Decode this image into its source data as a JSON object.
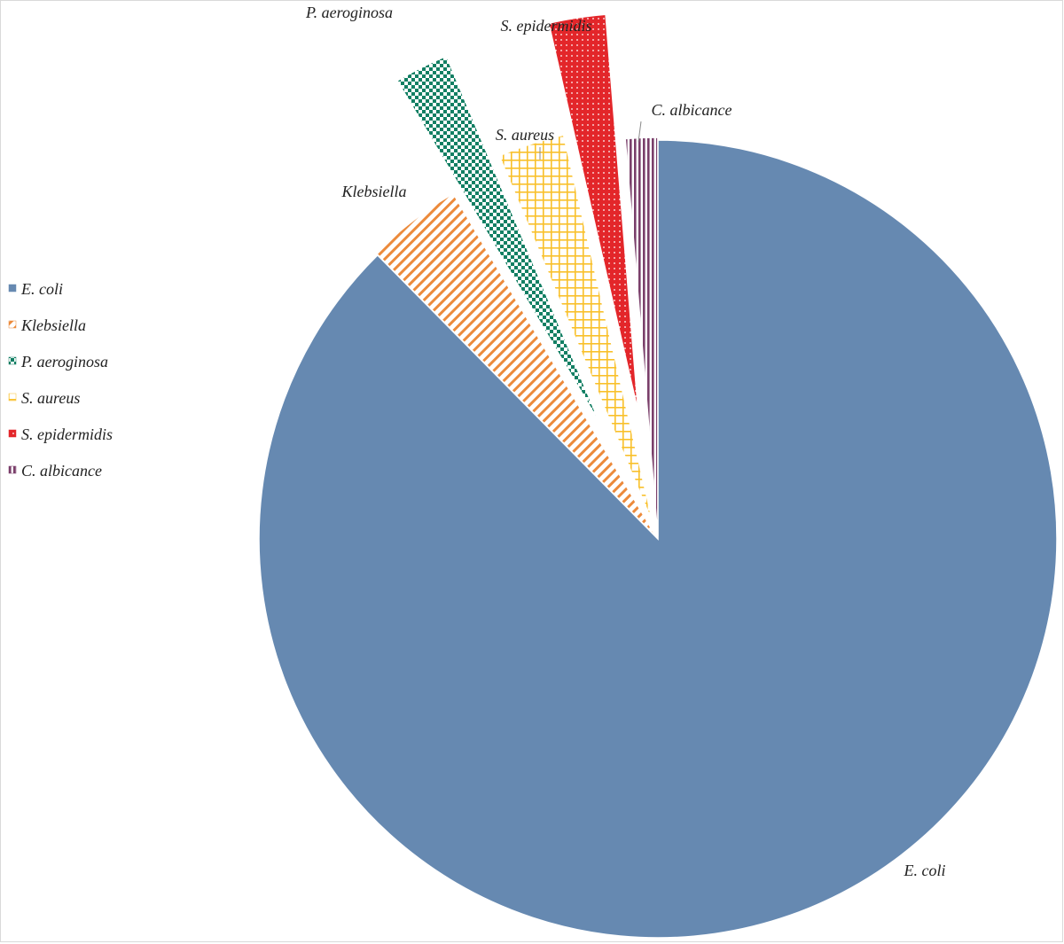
{
  "chart_data": {
    "type": "pie",
    "title": "",
    "legend_position": "left",
    "categories": [
      "E. coli",
      "Klebsiella",
      "P. aeroginosa",
      "S. aureus",
      "S. epidermidis",
      "C. albicance"
    ],
    "values": [
      87.6,
      3.9,
      2.2,
      2.7,
      2.3,
      1.3
    ],
    "colors": [
      "#6689b1",
      "#ec8a3b",
      "#127f63",
      "#f9c02a",
      "#e3262a",
      "#7a3f6a"
    ],
    "patterns": [
      "solid",
      "diagonal-lines",
      "checker",
      "grid",
      "dots",
      "vertical-lines"
    ]
  }
}
